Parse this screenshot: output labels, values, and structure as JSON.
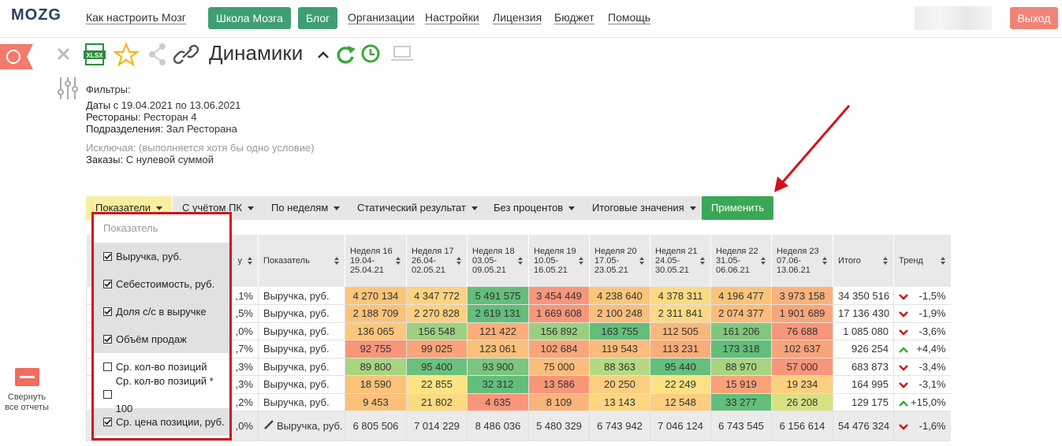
{
  "nav": {
    "logo": "MOZG",
    "links": [
      "Как настроить Мозг",
      "Организации",
      "Настройки",
      "Лицензия",
      "Бюджет",
      "Помощь"
    ],
    "buttons": [
      "Школа Мозга",
      "Блог"
    ],
    "logout": "Выход"
  },
  "report": {
    "xlsx": "XLSX",
    "title": "Динамики"
  },
  "filters": {
    "heading": "Фильтры:",
    "dates_label": "Даты",
    "dates": "с 19.04.2021 по 13.06.2021",
    "restaurants_label": "Рестораны:",
    "restaurants": "Ресторан 4",
    "divisions_label": "Подразделения:",
    "divisions": "Зал Ресторана",
    "exclude_label": "Исключая:",
    "exclude_note": "(выполняется хотя бы одно условие)",
    "orders_label": "Заказы:",
    "orders": "С нулевой суммой"
  },
  "toolbar": {
    "dropdowns": [
      "Показатели",
      "С учётом ПК",
      "По неделям",
      "Статический результат",
      "Без процентов",
      "Итоговые значения"
    ],
    "apply": "Применить"
  },
  "dropdown": {
    "header": "Показатель",
    "items": [
      {
        "label": "Выручка, руб.",
        "checked": true
      },
      {
        "label": "Себестоимость, руб.",
        "checked": true
      },
      {
        "label": "Доля с/с в выручке",
        "checked": true
      },
      {
        "label": "Объём продаж",
        "checked": true
      },
      {
        "label": "Ср. кол-во позиций",
        "checked": false
      },
      {
        "label": "Ср. кол-во позиций * 100",
        "checked": false
      },
      {
        "label": "Ср. цена позиции, руб.",
        "checked": true
      }
    ]
  },
  "table": {
    "headers": {
      "partial": "у",
      "metric": "Показатель",
      "weeks": [
        {
          "week": "Неделя 16",
          "from": "19.04-",
          "to": "25.04.21"
        },
        {
          "week": "Неделя 17",
          "from": "26.04-",
          "to": "02.05.21"
        },
        {
          "week": "Неделя 18",
          "from": "03.05-",
          "to": "09.05.21"
        },
        {
          "week": "Неделя 19",
          "from": "10.05-",
          "to": "16.05.21"
        },
        {
          "week": "Неделя 20",
          "from": "17.05-",
          "to": "23.05.21"
        },
        {
          "week": "Неделя 21",
          "from": "24.05-",
          "to": "30.05.21"
        },
        {
          "week": "Неделя 22",
          "from": "31.05-",
          "to": "06.06.21"
        },
        {
          "week": "Неделя 23",
          "from": "07.06-",
          "to": "13.06.21"
        }
      ],
      "total": "Итого",
      "trend": "Тренд"
    },
    "rows": [
      {
        "partial": ",1%",
        "metric": "Выручка, руб.",
        "cells": [
          "4 270 134",
          "4 347 772",
          "5 491 575",
          "3 454 449",
          "4 238 640",
          "4 378 311",
          "4 196 477",
          "3 973 158"
        ],
        "colors": [
          "#fbc67b",
          "#fcd380",
          "#63be7b",
          "#f8967a",
          "#fbc67b",
          "#fdda82",
          "#fbc47b",
          "#f9b27a"
        ],
        "total": "34 350 516",
        "trend": "down",
        "change": "-1,5%"
      },
      {
        "partial": ",5%",
        "metric": "Выручка, руб.",
        "cells": [
          "2 188 709",
          "2 270 828",
          "2 619 131",
          "1 669 608",
          "2 100 248",
          "2 311 841",
          "2 074 377",
          "1 901 689"
        ],
        "colors": [
          "#fbc37a",
          "#fcd07f",
          "#63be7b",
          "#f8967a",
          "#fbbe7b",
          "#fdda82",
          "#fbbc7b",
          "#f9a679"
        ],
        "total": "17 136 430",
        "trend": "down",
        "change": "-1,9%"
      },
      {
        "partial": ",0%",
        "metric": "Выручка, руб.",
        "cells": [
          "136 065",
          "156 548",
          "121 422",
          "156 892",
          "163 755",
          "112 505",
          "161 206",
          "76 688"
        ],
        "colors": [
          "#fcc77c",
          "#9dd080",
          "#faae79",
          "#9bcf80",
          "#63be7b",
          "#f9b87b",
          "#80c77d",
          "#f8967a"
        ],
        "total": "1 085 080",
        "trend": "down",
        "change": "-3,6%"
      },
      {
        "partial": ",7%",
        "metric": "Выручка, руб.",
        "cells": [
          "92 755",
          "99 025",
          "123 061",
          "102 684",
          "119 543",
          "113 231",
          "173 318",
          "102 637"
        ],
        "colors": [
          "#f8967a",
          "#f9a47a",
          "#fbc07b",
          "#f9a67a",
          "#fbbb7b",
          "#f9ad79",
          "#63be7b",
          "#f9a47a"
        ],
        "total": "926 254",
        "trend": "up",
        "change": "+4,4%"
      },
      {
        "partial": ",3%",
        "metric": "Выручка, руб.",
        "cells": [
          "89 800",
          "95 400",
          "93 900",
          "75 000",
          "88 363",
          "95 440",
          "88 970",
          "57 000"
        ],
        "colors": [
          "#a8d47f",
          "#6bc07c",
          "#7bc57d",
          "#fbbd7b",
          "#b5d980",
          "#66bf7c",
          "#a8d47f",
          "#f8967a"
        ],
        "total": "683 873",
        "trend": "down",
        "change": "-3,4%"
      },
      {
        "partial": ",3%",
        "metric": "Выручка, руб.",
        "cells": [
          "18 590",
          "22 855",
          "32 312",
          "13 586",
          "20 250",
          "22 249",
          "15 919",
          "19 234"
        ],
        "colors": [
          "#fbc27a",
          "#fde383",
          "#63be7b",
          "#f8967a",
          "#fcce7f",
          "#fde283",
          "#f9a27a",
          "#fcd07f"
        ],
        "total": "164 995",
        "trend": "down",
        "change": "-3,1%"
      },
      {
        "partial": ",2%",
        "metric": "Выручка, руб.",
        "cells": [
          "9 453",
          "21 802",
          "4 635",
          "8 109",
          "13 143",
          "12 548",
          "33 277",
          "26 208"
        ],
        "colors": [
          "#fbc07a",
          "#fbdb80",
          "#f8967a",
          "#f9b47b",
          "#fcd681",
          "#fcce7f",
          "#63be7b",
          "#d7e182"
        ],
        "total": "129 175",
        "trend": "up",
        "change": "+15,0%"
      }
    ],
    "footer": {
      "partial": ",0%",
      "metric": "Выручка, руб.",
      "cells": [
        "6 805 506",
        "7 014 229",
        "8 486 036",
        "5 480 329",
        "6 743 942",
        "7 046 124",
        "6 743 545",
        "6 156 614"
      ],
      "total": "54 476 324",
      "trend": "down",
      "change": "-1,6%"
    }
  },
  "sidebar": {
    "collapse": "Свернуть все отчеты"
  }
}
